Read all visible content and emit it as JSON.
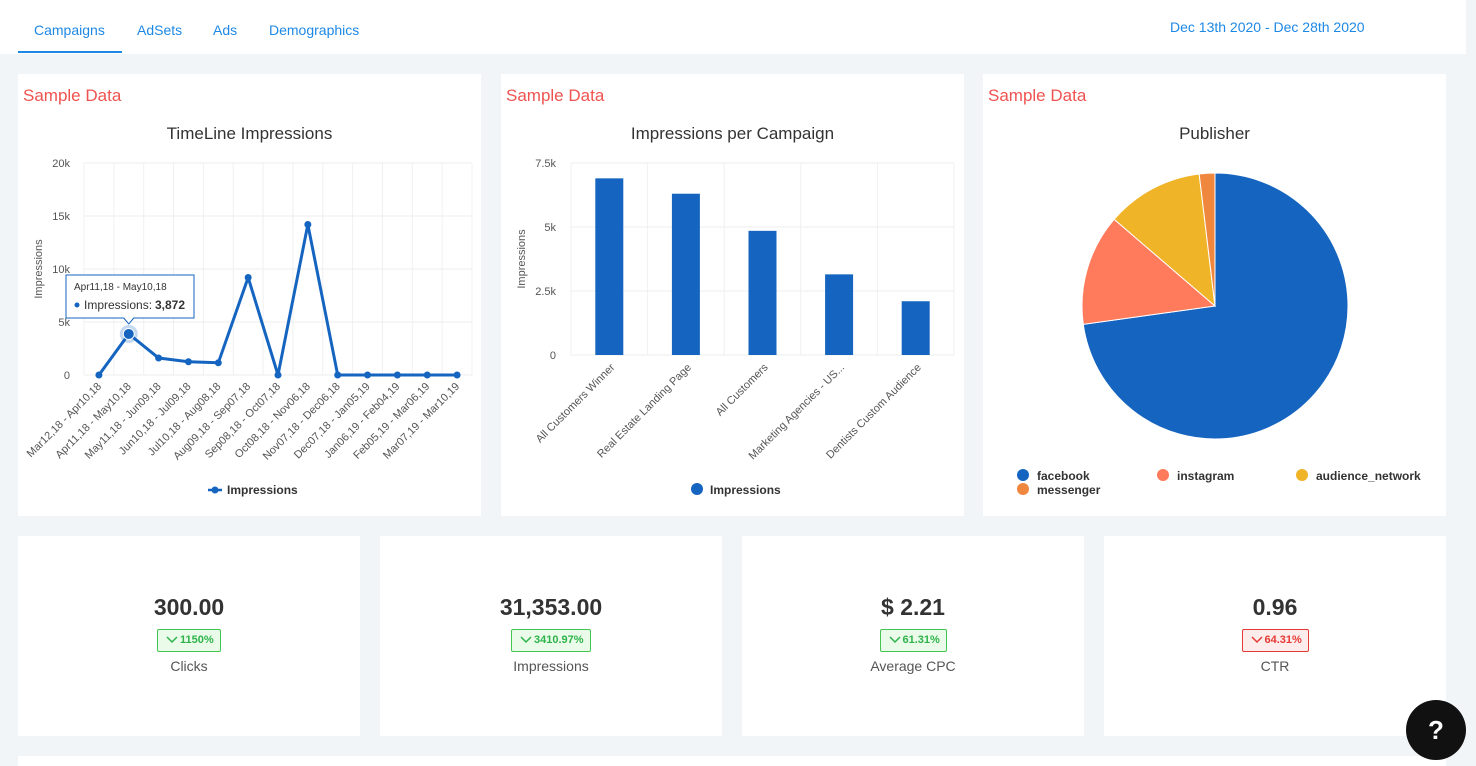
{
  "tabs": [
    "Campaigns",
    "AdSets",
    "Ads",
    "Demographics"
  ],
  "active_tab": "Campaigns",
  "date_range": "Dec 13th 2020 - Dec 28th 2020",
  "sample_label": "Sample Data",
  "colors": {
    "accent": "#1e88e5",
    "series": "#1565c0",
    "sample": "#ef5350",
    "up": "#2db34a",
    "down": "#e53935"
  },
  "chart_data": [
    {
      "type": "line",
      "title": "TimeLine Impressions",
      "ylabel": "Impressions",
      "ylim": [
        0,
        20000
      ],
      "yticks": [
        "0",
        "5k",
        "10k",
        "15k",
        "20k"
      ],
      "categories": [
        "Mar12,18 - Apr10,18",
        "Apr11,18 - May10,18",
        "May11,18 - Jun09,18",
        "Jun10,18 - Jul09,18",
        "Jul10,18 - Aug08,18",
        "Aug09,18 - Sep07,18",
        "Sep08,18 - Oct07,18",
        "Oct08,18 - Nov06,18",
        "Nov07,18 - Dec06,18",
        "Dec07,18 - Jan05,19",
        "Jan06,19 - Feb04,19",
        "Feb05,19 - Mar06,19",
        "Mar07,19 - Mar10,19"
      ],
      "series": [
        {
          "name": "Impressions",
          "values": [
            0,
            3872,
            1600,
            1250,
            1150,
            9200,
            0,
            14200,
            0,
            0,
            0,
            0,
            0
          ]
        }
      ],
      "tooltip": {
        "header": "Apr11,18 - May10,18",
        "label": "Impressions:",
        "value": "3,872"
      },
      "legend": "bottom"
    },
    {
      "type": "bar",
      "title": "Impressions per Campaign",
      "ylabel": "Impressions",
      "ylim": [
        0,
        7500
      ],
      "yticks": [
        "0",
        "2.5k",
        "5k",
        "7.5k"
      ],
      "categories": [
        "All Customers Winner",
        "Real Estate Landing Page",
        "All Customers",
        "Marketing Agencies - US...",
        "Dentists Custom Audience"
      ],
      "series": [
        {
          "name": "Impressions",
          "values": [
            6900,
            6300,
            4850,
            3150,
            2100
          ]
        }
      ],
      "legend": "bottom"
    },
    {
      "type": "pie",
      "title": "Publisher",
      "slices": [
        {
          "name": "facebook",
          "value": 72.8,
          "color": "#1565c0"
        },
        {
          "name": "instagram",
          "value": 13.5,
          "color": "#ff7b5c"
        },
        {
          "name": "audience_network",
          "value": 11.8,
          "color": "#f0b429"
        },
        {
          "name": "messenger",
          "value": 1.9,
          "color": "#f0873e"
        }
      ],
      "legend": "bottom"
    }
  ],
  "kpis": [
    {
      "value": "300.00",
      "change": "1150%",
      "direction": "down",
      "label": "Clicks",
      "status": "up"
    },
    {
      "value": "31,353.00",
      "change": "3410.97%",
      "direction": "down",
      "label": "Impressions",
      "status": "up"
    },
    {
      "value": "$ 2.21",
      "change": "61.31%",
      "direction": "down",
      "label": "Average CPC",
      "status": "up"
    },
    {
      "value": "0.96",
      "change": "64.31%",
      "direction": "down",
      "label": "CTR",
      "status": "down"
    }
  ],
  "help_label": "?"
}
